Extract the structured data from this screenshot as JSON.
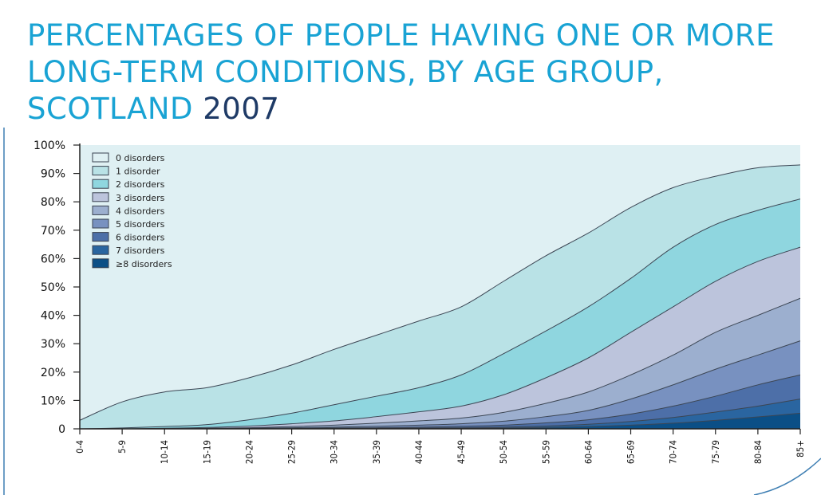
{
  "title": {
    "main": "PERCENTAGES OF PEOPLE HAVING ONE OR MORE LONG-TERM CONDITIONS, BY AGE GROUP, SCOTLAND ",
    "year": "2007"
  },
  "chart_data": {
    "type": "area",
    "stacked": true,
    "title": "PERCENTAGES OF PEOPLE HAVING ONE OR MORE LONG-TERM CONDITIONS, BY AGE GROUP, SCOTLAND 2007",
    "xlabel": "",
    "ylabel": "",
    "ylim": [
      0,
      100
    ],
    "y_ticks": [
      "0",
      "10%",
      "20%",
      "30%",
      "40%",
      "50%",
      "60%",
      "70%",
      "80%",
      "90%",
      "100%"
    ],
    "categories": [
      "0-4",
      "5-9",
      "10-14",
      "15-19",
      "20-24",
      "25-29",
      "30-34",
      "35-39",
      "40-44",
      "45-49",
      "50-54",
      "55-59",
      "60-64",
      "65-69",
      "70-74",
      "75-79",
      "80-84",
      "85+"
    ],
    "legend_position": "top-left",
    "series": [
      {
        "name": "0 disorders",
        "color": "#dff0f3",
        "cumulative": [
          100,
          100,
          100,
          100,
          100,
          100,
          100,
          100,
          100,
          100,
          100,
          100,
          100,
          100,
          100,
          100,
          100,
          100
        ]
      },
      {
        "name": "1 disorder",
        "color": "#b9e2e6",
        "cumulative": [
          3,
          9.5,
          13,
          14.5,
          18,
          22.5,
          28,
          33,
          38,
          43,
          52,
          61,
          69,
          78,
          85,
          89,
          92,
          93
        ]
      },
      {
        "name": "2 disorders",
        "color": "#8fd6df",
        "cumulative": [
          0,
          0.3,
          0.8,
          1.5,
          3.2,
          5.5,
          8.5,
          11.5,
          14.5,
          19,
          26.5,
          34.5,
          43,
          53,
          64,
          72,
          77,
          81
        ]
      },
      {
        "name": "3 disorders",
        "color": "#bcc4dc",
        "cumulative": [
          0,
          0,
          0.2,
          0.5,
          1,
          1.8,
          2.8,
          4.3,
          6,
          8,
          12,
          18,
          25,
          34,
          43,
          52,
          59,
          64
        ]
      },
      {
        "name": "4 disorders",
        "color": "#9cafcf",
        "cumulative": [
          0,
          0,
          0,
          0.2,
          0.4,
          0.8,
          1.3,
          2,
          2.8,
          3.8,
          5.8,
          9,
          13,
          19,
          26,
          34,
          40,
          46
        ]
      },
      {
        "name": "5 disorders",
        "color": "#7891c0",
        "cumulative": [
          0,
          0,
          0,
          0,
          0.2,
          0.4,
          0.6,
          0.9,
          1.3,
          1.8,
          2.7,
          4.3,
          6.5,
          10.5,
          15.5,
          21,
          26,
          31
        ]
      },
      {
        "name": "6 disorders",
        "color": "#4d6fa8",
        "cumulative": [
          0,
          0,
          0,
          0,
          0,
          0.1,
          0.3,
          0.4,
          0.6,
          0.9,
          1.3,
          2.1,
          3.2,
          5.2,
          8,
          11.5,
          15.5,
          19
        ]
      },
      {
        "name": "7 disorders",
        "color": "#2a65a0",
        "cumulative": [
          0,
          0,
          0,
          0,
          0,
          0,
          0.1,
          0.2,
          0.3,
          0.4,
          0.6,
          1,
          1.6,
          2.6,
          4,
          5.9,
          8,
          10.5
        ]
      },
      {
        "name": "≥8 disorders",
        "color": "#0b4f86",
        "cumulative": [
          0,
          0,
          0,
          0,
          0,
          0,
          0,
          0.1,
          0.1,
          0.2,
          0.3,
          0.5,
          0.8,
          1.3,
          2,
          3,
          4.2,
          5.5
        ]
      }
    ]
  }
}
